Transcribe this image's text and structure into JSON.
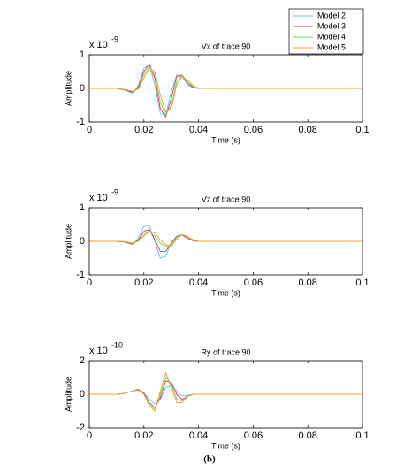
{
  "chart_data": [
    {
      "type": "line",
      "title": "Vx of trace 90",
      "xlabel": "Time (s)",
      "ylabel": "Amplitude",
      "y_scale_label": "x 10",
      "y_scale_exponent": "-9",
      "x": [
        0,
        0.01,
        0.013,
        0.016,
        0.018,
        0.02,
        0.022,
        0.024,
        0.026,
        0.028,
        0.03,
        0.032,
        0.034,
        0.036,
        0.038,
        0.04,
        0.045,
        0.1
      ],
      "xlim": [
        0,
        0.1
      ],
      "xticks": [
        0,
        0.02,
        0.04,
        0.06,
        0.08,
        0.1
      ],
      "ylim": [
        -1,
        1
      ],
      "yticks": [
        -1,
        0,
        1
      ],
      "legend": "top-right",
      "series": [
        {
          "name": "Model 2",
          "color": "#6fb7e6",
          "values": [
            0,
            0,
            -0.05,
            -0.15,
            0.1,
            0.6,
            0.7,
            0.1,
            -0.75,
            -0.8,
            -0.1,
            0.4,
            0.35,
            0.1,
            0.02,
            0,
            0,
            0
          ]
        },
        {
          "name": "Model 3",
          "color": "#e0306a",
          "values": [
            0,
            0,
            -0.04,
            -0.12,
            0.05,
            0.5,
            0.72,
            0.3,
            -0.6,
            -0.85,
            -0.3,
            0.35,
            0.4,
            0.15,
            0.03,
            0,
            0,
            0
          ]
        },
        {
          "name": "Model 4",
          "color": "#6ddc5a",
          "values": [
            0,
            0,
            -0.03,
            -0.1,
            0,
            0.4,
            0.65,
            0.4,
            -0.4,
            -0.8,
            -0.5,
            0.2,
            0.4,
            0.2,
            0.05,
            0,
            0,
            0
          ]
        },
        {
          "name": "Model 5",
          "color": "#f0a030",
          "values": [
            0,
            0,
            -0.03,
            -0.08,
            -0.02,
            0.3,
            0.6,
            0.5,
            -0.2,
            -0.7,
            -0.6,
            0.1,
            0.35,
            0.25,
            0.08,
            0.01,
            0,
            0
          ]
        }
      ]
    },
    {
      "type": "line",
      "title": "Vz of trace 90",
      "xlabel": "Time (s)",
      "ylabel": "Amplitude",
      "y_scale_label": "x 10",
      "y_scale_exponent": "-9",
      "x": [
        0,
        0.01,
        0.013,
        0.016,
        0.018,
        0.02,
        0.022,
        0.024,
        0.026,
        0.028,
        0.03,
        0.032,
        0.034,
        0.036,
        0.038,
        0.04,
        0.045,
        0.1
      ],
      "xlim": [
        0,
        0.1
      ],
      "xticks": [
        0,
        0.02,
        0.04,
        0.06,
        0.08,
        0.1
      ],
      "ylim": [
        -1,
        1
      ],
      "yticks": [
        -1,
        0,
        1
      ],
      "series": [
        {
          "color": "#6fb7e6",
          "values": [
            0,
            0,
            -0.02,
            -0.1,
            0.1,
            0.45,
            0.45,
            0,
            -0.5,
            -0.45,
            -0.05,
            0.15,
            0.18,
            0.08,
            0.02,
            0,
            0,
            0
          ]
        },
        {
          "color": "#e0306a",
          "values": [
            0,
            0,
            -0.02,
            -0.08,
            0.05,
            0.3,
            0.35,
            0.05,
            -0.3,
            -0.3,
            -0.05,
            0.15,
            0.2,
            0.1,
            0.02,
            0,
            0,
            0
          ]
        },
        {
          "color": "#6ddc5a",
          "values": [
            0,
            0,
            -0.01,
            -0.06,
            0.02,
            0.2,
            0.3,
            0.15,
            -0.05,
            -0.15,
            -0.1,
            0.1,
            0.2,
            0.15,
            0.04,
            0,
            0,
            0
          ]
        },
        {
          "color": "#f0a030",
          "values": [
            0,
            0,
            -0.01,
            -0.05,
            0,
            0.15,
            0.3,
            0.25,
            0.05,
            -0.1,
            -0.15,
            0.05,
            0.2,
            0.15,
            0.05,
            0,
            0,
            0
          ]
        }
      ]
    },
    {
      "type": "line",
      "title": "Ry of trace 90",
      "xlabel": "Time (s)",
      "ylabel": "Amplitude",
      "y_scale_label": "x 10",
      "y_scale_exponent": "-10",
      "x": [
        0,
        0.01,
        0.013,
        0.016,
        0.018,
        0.02,
        0.022,
        0.024,
        0.026,
        0.028,
        0.03,
        0.032,
        0.034,
        0.036,
        0.038,
        0.04,
        0.045,
        0.1
      ],
      "xlim": [
        0,
        0.1
      ],
      "xticks": [
        0,
        0.02,
        0.04,
        0.06,
        0.08,
        0.1
      ],
      "ylim": [
        -2,
        2
      ],
      "yticks": [
        -2,
        0,
        2
      ],
      "series": [
        {
          "color": "#6fb7e6",
          "values": [
            0,
            0,
            0.05,
            0.2,
            0.3,
            0.1,
            -0.3,
            -0.6,
            -0.3,
            0.4,
            0.5,
            0.2,
            -0.1,
            -0.05,
            0,
            0,
            0,
            0
          ]
        },
        {
          "color": "#e0306a",
          "values": [
            0,
            0,
            0.05,
            0.2,
            0.25,
            0.05,
            -0.5,
            -0.8,
            -0.2,
            0.8,
            0.7,
            0,
            -0.3,
            -0.1,
            0,
            0,
            0,
            0
          ]
        },
        {
          "color": "#6ddc5a",
          "values": [
            0,
            0,
            0.05,
            0.2,
            0.3,
            0,
            -0.6,
            -0.9,
            0,
            1,
            0.6,
            -0.3,
            -0.4,
            -0.1,
            0,
            0,
            0,
            0
          ]
        },
        {
          "color": "#f0a030",
          "values": [
            0,
            0,
            0.05,
            0.2,
            0.3,
            0,
            -0.7,
            -1,
            0.2,
            1.3,
            0.4,
            -0.5,
            -0.5,
            -0.15,
            0,
            0,
            0,
            0
          ]
        }
      ]
    }
  ],
  "caption": "(b)"
}
